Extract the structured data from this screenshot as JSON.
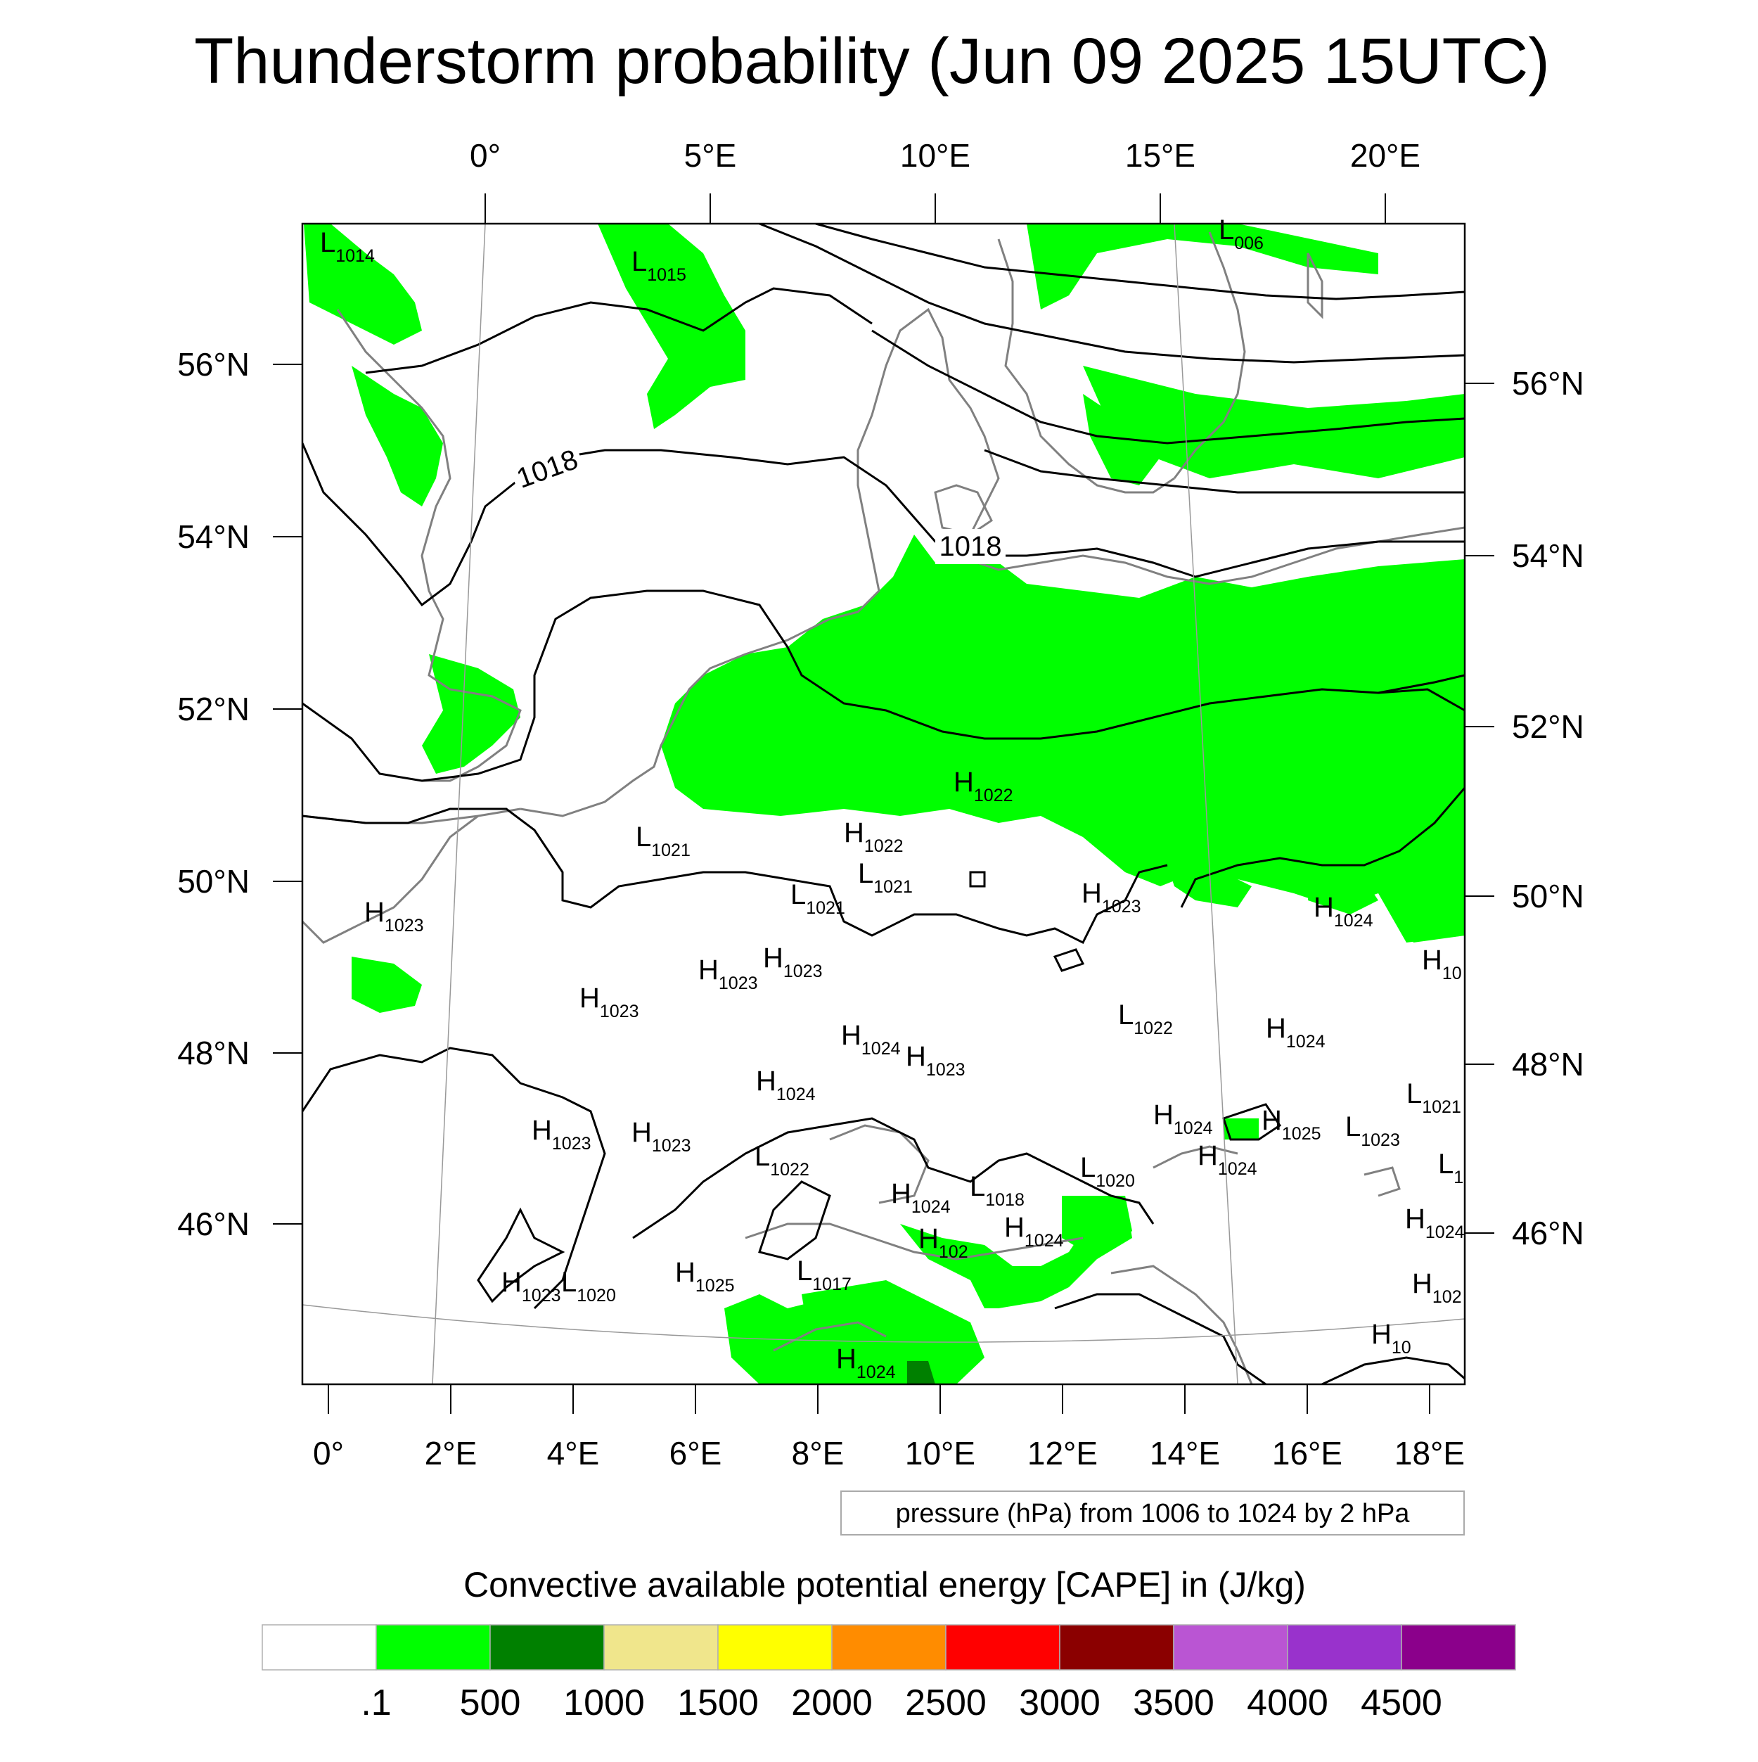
{
  "title": "Thunderstorm probability (Jun 09 2025 15UTC)",
  "map": {
    "top_lon_labels": [
      "0°",
      "5°E",
      "10°E",
      "15°E",
      "20°E"
    ],
    "bottom_lon_labels": [
      "0°",
      "2°E",
      "4°E",
      "6°E",
      "8°E",
      "10°E",
      "12°E",
      "14°E",
      "16°E",
      "18°E"
    ],
    "left_lat_labels": [
      "56°N",
      "54°N",
      "52°N",
      "50°N",
      "48°N",
      "46°N"
    ],
    "right_lat_labels": [
      "56°N",
      "54°N",
      "52°N",
      "50°N",
      "48°N",
      "46°N"
    ],
    "isobar_labels": [
      "1018",
      "1018"
    ],
    "pressure_centers": [
      {
        "letter": "L",
        "value": "1014"
      },
      {
        "letter": "L",
        "value": "1015"
      },
      {
        "letter": "L",
        "value": "006"
      },
      {
        "letter": "H",
        "value": "1022"
      },
      {
        "letter": "H",
        "value": "1022"
      },
      {
        "letter": "L",
        "value": "1021"
      },
      {
        "letter": "L",
        "value": "1021"
      },
      {
        "letter": "L",
        "value": "1021"
      },
      {
        "letter": "H",
        "value": "1023"
      },
      {
        "letter": "H",
        "value": "1023"
      },
      {
        "letter": "H",
        "value": "1023"
      },
      {
        "letter": "H",
        "value": "1023"
      },
      {
        "letter": "H",
        "value": "1023"
      },
      {
        "letter": "H",
        "value": "1024"
      },
      {
        "letter": "H",
        "value": "10"
      },
      {
        "letter": "H",
        "value": "1024"
      },
      {
        "letter": "L",
        "value": "1022"
      },
      {
        "letter": "H",
        "value": "1024"
      },
      {
        "letter": "H",
        "value": "1023"
      },
      {
        "letter": "H",
        "value": "1024"
      },
      {
        "letter": "H",
        "value": "1024"
      },
      {
        "letter": "H",
        "value": "1025"
      },
      {
        "letter": "L",
        "value": "1023"
      },
      {
        "letter": "L",
        "value": "1021"
      },
      {
        "letter": "H",
        "value": "1023"
      },
      {
        "letter": "H",
        "value": "1023"
      },
      {
        "letter": "L",
        "value": "1022"
      },
      {
        "letter": "H",
        "value": "1024"
      },
      {
        "letter": "L",
        "value": "1"
      },
      {
        "letter": "L",
        "value": "1020"
      },
      {
        "letter": "H",
        "value": "1024"
      },
      {
        "letter": "L",
        "value": "1018"
      },
      {
        "letter": "H",
        "value": "1024"
      },
      {
        "letter": "H",
        "value": "102"
      },
      {
        "letter": "H",
        "value": "1024"
      },
      {
        "letter": "H",
        "value": "102"
      },
      {
        "letter": "H",
        "value": "1023"
      },
      {
        "letter": "L",
        "value": "1020"
      },
      {
        "letter": "H",
        "value": "1025"
      },
      {
        "letter": "L",
        "value": "1017"
      },
      {
        "letter": "H",
        "value": "1024"
      },
      {
        "letter": "H",
        "value": "10"
      }
    ],
    "contour_note": "pressure (hPa) from 1006 to 1024 by 2 hPa"
  },
  "colorbar": {
    "title": "Convective available potential energy [CAPE] in (J/kg)",
    "colors": [
      "#ffffff",
      "#00ff00",
      "#008000",
      "#f0e68c",
      "#ffff00",
      "#ff8c00",
      "#ff0000",
      "#8b0000",
      "#ba55d3",
      "#9932cc",
      "#8b008b"
    ],
    "labels": [
      ".1",
      "500",
      "1000",
      "1500",
      "2000",
      "2500",
      "3000",
      "3500",
      "4000",
      "4500"
    ]
  },
  "colors": {
    "cape_low": "#00ff00",
    "cape_mid": "#008000",
    "coastline": "#808080",
    "isobar": "#000000"
  }
}
